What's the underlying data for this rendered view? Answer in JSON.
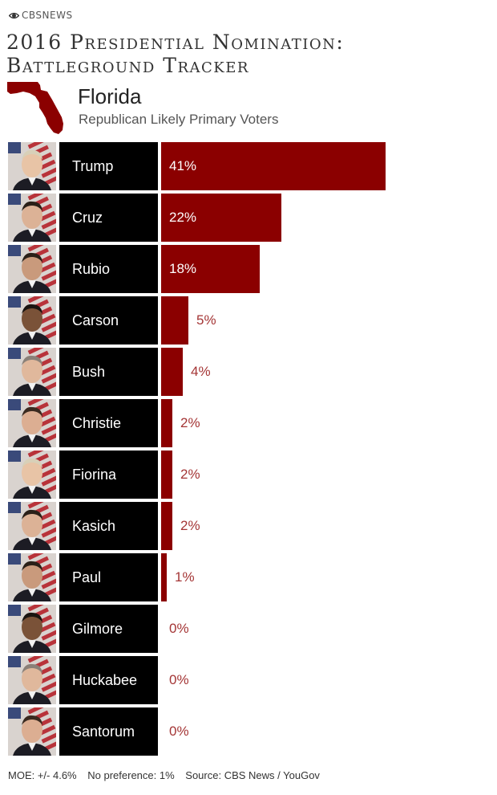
{
  "brand": "CBSNEWS",
  "title_lines": [
    "2016 Presidential Nomination:",
    "Battleground Tracker"
  ],
  "state": "Florida",
  "subtitle": "Republican Likely Primary Voters",
  "colors": {
    "bar": "#8b0000",
    "namebox": "#000000",
    "value_outside": "#a43535",
    "value_inside": "#ffffff"
  },
  "chart_data": {
    "type": "bar",
    "orientation": "horizontal",
    "categories": [
      "Trump",
      "Cruz",
      "Rubio",
      "Carson",
      "Bush",
      "Christie",
      "Fiorina",
      "Kasich",
      "Paul",
      "Gilmore",
      "Huckabee",
      "Santorum"
    ],
    "values": [
      41,
      22,
      18,
      5,
      4,
      2,
      2,
      2,
      1,
      0,
      0,
      0
    ],
    "value_labels": [
      "41%",
      "22%",
      "18%",
      "5%",
      "4%",
      "2%",
      "2%",
      "2%",
      "1%",
      "0%",
      "0%",
      "0%"
    ],
    "unit": "%",
    "xlim": [
      0,
      41
    ]
  },
  "footer": {
    "moe": "MOE: +/- 4.6%",
    "no_preference": "No preference: 1%",
    "source": "Source: CBS News / YouGov"
  }
}
